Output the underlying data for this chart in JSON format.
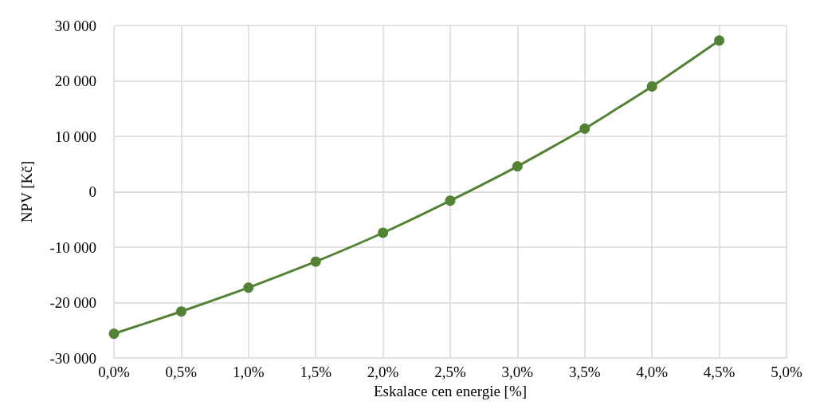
{
  "chart_data": {
    "type": "line",
    "xlabel": "Eskalace cen energie [%]",
    "ylabel": "NPV [Kč]",
    "x": [
      0,
      0.5,
      1,
      1.5,
      2,
      2.5,
      3,
      3.5,
      4,
      4.5
    ],
    "series": [
      {
        "color": "#548235",
        "values": [
          -25600,
          -21600,
          -17300,
          -12600,
          -7400,
          -1600,
          4600,
          11400,
          19000,
          27300
        ]
      }
    ],
    "xlim": [
      0,
      5
    ],
    "xticks": [
      {
        "value": 0,
        "label": "0,0%"
      },
      {
        "value": 0.5,
        "label": "0,5%"
      },
      {
        "value": 1,
        "label": "1,0%"
      },
      {
        "value": 1.5,
        "label": "1,5%"
      },
      {
        "value": 2,
        "label": "2,0%"
      },
      {
        "value": 2.5,
        "label": "2,5%"
      },
      {
        "value": 3,
        "label": "3,0%"
      },
      {
        "value": 3.5,
        "label": "3,5%"
      },
      {
        "value": 4,
        "label": "4,0%"
      },
      {
        "value": 4.5,
        "label": "4,5%"
      },
      {
        "value": 5,
        "label": "5,0%"
      }
    ],
    "ylim": [
      -30000,
      30000
    ],
    "yticks": [
      {
        "value": -30000,
        "label": "-30 000"
      },
      {
        "value": -20000,
        "label": "-20 000"
      },
      {
        "value": -10000,
        "label": "-10 000"
      },
      0,
      {
        "value": 10000,
        "label": "10 000"
      },
      {
        "value": 20000,
        "label": "20 000"
      },
      {
        "value": 30000,
        "label": "30 000"
      }
    ],
    "grid": true,
    "marker": "circle",
    "line_style": "solid"
  }
}
